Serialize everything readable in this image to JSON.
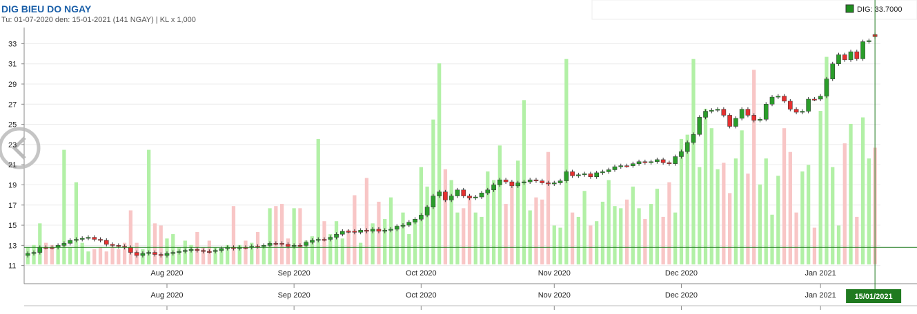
{
  "chart_data": {
    "type": "candlestick",
    "title": "DIG BIEU DO NGAY",
    "subtitle": "Tu: 01-07-2020 den: 15-01-2021 (141 NGAY) | KL x 1,000",
    "legend_text": "DIG: 33.7000",
    "legend_color": "#1f8f1f",
    "up_color": "#2a9d2a",
    "down_color": "#e53030",
    "volume_up_color": "#b2f0a6",
    "volume_down_color": "#f8c6c6",
    "crosshair_color": "#1f7a1f",
    "crosshair": {
      "x": 140,
      "y": 12.8,
      "x_label": "15/01/2021"
    },
    "ylim": [
      9.2,
      34.6
    ],
    "yticks": [
      11,
      13,
      15,
      17,
      19,
      21,
      23,
      25,
      27,
      29,
      31,
      33
    ],
    "xlim": [
      -0.6,
      140.9
    ],
    "xticks": [
      {
        "value": 23,
        "label": "Aug 2020"
      },
      {
        "value": 44,
        "label": "Sep 2020"
      },
      {
        "value": 65,
        "label": "Oct 2020"
      },
      {
        "value": 87,
        "label": "Nov 2020"
      },
      {
        "value": 108,
        "label": "Dec 2020"
      },
      {
        "value": 131,
        "label": "Jan 2021"
      }
    ],
    "volume_lim": [
      0,
      10000
    ],
    "grid": true,
    "open": [
      12.0,
      12.2,
      12.3,
      12.8,
      12.8,
      12.8,
      13.0,
      13.2,
      13.5,
      13.6,
      13.7,
      13.8,
      13.6,
      13.5,
      13.1,
      13.0,
      12.9,
      12.8,
      12.3,
      12.0,
      12.2,
      12.3,
      12.1,
      12.0,
      12.2,
      12.3,
      12.4,
      12.5,
      12.6,
      12.5,
      12.4,
      12.4,
      12.5,
      12.7,
      12.8,
      12.7,
      12.8,
      12.8,
      12.9,
      12.9,
      13.0,
      13.2,
      13.2,
      13.1,
      12.9,
      13.0,
      13.0,
      13.3,
      13.5,
      13.6,
      13.6,
      13.8,
      14.1,
      14.4,
      14.4,
      14.3,
      14.5,
      14.4,
      14.6,
      14.4,
      14.5,
      14.6,
      14.9,
      15.0,
      15.3,
      15.6,
      16.0,
      16.8,
      17.9,
      18.3,
      17.5,
      17.9,
      18.5,
      17.9,
      17.7,
      17.8,
      18.2,
      18.5,
      19.0,
      19.5,
      19.3,
      18.9,
      19.2,
      19.3,
      19.5,
      19.4,
      19.2,
      19.1,
      19.2,
      19.4,
      20.3,
      19.9,
      20.0,
      20.1,
      19.8,
      20.2,
      20.3,
      20.5,
      20.8,
      20.9,
      20.9,
      21.1,
      21.3,
      21.2,
      21.3,
      21.5,
      21.2,
      21.1,
      21.8,
      22.3,
      23.2,
      24.0,
      25.7,
      26.3,
      26.4,
      26.5,
      25.9,
      24.8,
      25.6,
      26.5,
      25.9,
      25.4,
      25.5,
      27.0,
      27.7,
      27.8,
      27.3,
      26.5,
      26.2,
      26.3,
      27.5,
      27.5,
      27.8,
      29.5,
      31.0,
      31.9,
      31.4,
      32.2,
      31.5,
      33.2,
      33.9
    ],
    "high": [
      12.4,
      12.5,
      13.0,
      13.0,
      13.0,
      13.2,
      13.4,
      13.7,
      13.8,
      13.9,
      14.0,
      14.0,
      13.8,
      13.7,
      13.3,
      13.2,
      13.1,
      13.0,
      12.5,
      12.4,
      12.5,
      12.5,
      12.3,
      12.4,
      12.5,
      12.6,
      12.7,
      12.8,
      12.8,
      12.7,
      12.6,
      12.7,
      12.9,
      13.0,
      13.0,
      13.0,
      13.0,
      13.1,
      13.1,
      13.2,
      13.4,
      13.4,
      13.4,
      13.3,
      13.2,
      13.2,
      13.5,
      13.7,
      13.8,
      13.8,
      14.0,
      14.3,
      14.6,
      14.6,
      14.6,
      14.7,
      14.7,
      14.8,
      14.8,
      14.7,
      14.8,
      15.1,
      15.2,
      15.5,
      15.8,
      16.2,
      17.0,
      18.1,
      18.5,
      18.5,
      18.1,
      18.7,
      18.7,
      18.1,
      18.0,
      18.4,
      18.7,
      19.2,
      19.7,
      19.7,
      19.5,
      19.4,
      19.5,
      19.7,
      19.7,
      19.6,
      19.4,
      19.4,
      19.6,
      20.5,
      20.5,
      20.2,
      20.3,
      20.3,
      20.4,
      20.5,
      20.7,
      21.0,
      21.1,
      21.1,
      21.3,
      21.5,
      21.5,
      21.5,
      21.7,
      21.7,
      21.4,
      22.0,
      22.5,
      23.4,
      24.2,
      25.9,
      26.5,
      26.6,
      26.7,
      26.7,
      26.1,
      25.8,
      26.7,
      26.7,
      26.1,
      25.7,
      27.2,
      27.9,
      28.0,
      28.0,
      27.5,
      26.7,
      26.5,
      27.7,
      27.7,
      28.0,
      29.7,
      31.2,
      32.1,
      32.1,
      32.4,
      32.4,
      33.4,
      33.5,
      34.1
    ],
    "low": [
      11.8,
      12.0,
      12.1,
      12.6,
      12.6,
      12.6,
      12.8,
      13.0,
      13.3,
      13.4,
      13.5,
      13.4,
      13.3,
      12.9,
      12.8,
      12.7,
      12.6,
      12.1,
      11.8,
      11.8,
      12.0,
      11.9,
      11.8,
      11.8,
      12.0,
      12.1,
      12.2,
      12.3,
      12.3,
      12.2,
      12.2,
      12.2,
      12.3,
      12.5,
      12.5,
      12.5,
      12.6,
      12.6,
      12.7,
      12.7,
      12.8,
      13.0,
      12.9,
      12.7,
      12.7,
      12.8,
      12.8,
      13.1,
      13.3,
      13.4,
      13.4,
      13.6,
      13.9,
      14.2,
      14.1,
      14.1,
      14.2,
      14.2,
      14.2,
      14.2,
      14.3,
      14.4,
      14.7,
      14.8,
      15.1,
      15.4,
      15.8,
      16.6,
      17.7,
      17.3,
      17.3,
      17.7,
      17.7,
      17.5,
      17.5,
      17.6,
      18.0,
      18.3,
      18.8,
      19.1,
      18.7,
      18.7,
      19.0,
      19.1,
      19.2,
      19.0,
      18.9,
      18.9,
      19.0,
      19.2,
      19.7,
      19.7,
      19.8,
      19.6,
      19.6,
      20.0,
      20.1,
      20.3,
      20.6,
      20.7,
      20.7,
      20.9,
      21.0,
      21.0,
      21.1,
      21.0,
      20.9,
      20.9,
      21.6,
      22.1,
      23.0,
      23.8,
      25.5,
      26.1,
      26.2,
      25.7,
      24.6,
      24.6,
      25.4,
      25.7,
      25.2,
      25.2,
      25.3,
      26.8,
      27.5,
      27.1,
      26.3,
      26.0,
      26.0,
      26.1,
      27.3,
      27.3,
      27.6,
      29.3,
      30.8,
      31.2,
      31.2,
      31.3,
      31.3,
      33.0,
      33.5
    ],
    "close": [
      12.2,
      12.3,
      12.8,
      12.8,
      12.8,
      13.0,
      13.2,
      13.5,
      13.6,
      13.7,
      13.8,
      13.6,
      13.5,
      13.1,
      13.0,
      12.9,
      12.8,
      12.3,
      12.0,
      12.2,
      12.3,
      12.1,
      12.0,
      12.2,
      12.3,
      12.4,
      12.5,
      12.6,
      12.5,
      12.4,
      12.4,
      12.5,
      12.7,
      12.8,
      12.7,
      12.8,
      12.8,
      12.9,
      12.9,
      13.0,
      13.2,
      13.2,
      13.1,
      12.9,
      13.0,
      13.0,
      13.3,
      13.5,
      13.6,
      13.6,
      13.8,
      14.1,
      14.4,
      14.4,
      14.3,
      14.5,
      14.4,
      14.6,
      14.4,
      14.5,
      14.6,
      14.9,
      15.0,
      15.3,
      15.6,
      16.0,
      16.8,
      17.9,
      18.3,
      17.5,
      17.9,
      18.5,
      17.9,
      17.7,
      17.8,
      18.2,
      18.5,
      19.0,
      19.5,
      19.3,
      18.9,
      19.2,
      19.3,
      19.5,
      19.4,
      19.2,
      19.1,
      19.2,
      19.4,
      20.3,
      19.9,
      20.0,
      20.1,
      19.8,
      20.2,
      20.3,
      20.5,
      20.8,
      20.9,
      20.9,
      21.1,
      21.3,
      21.2,
      21.3,
      21.5,
      21.2,
      21.1,
      21.8,
      22.3,
      23.2,
      24.0,
      25.7,
      26.3,
      26.4,
      26.5,
      25.9,
      24.8,
      25.6,
      26.5,
      25.9,
      25.4,
      25.5,
      27.0,
      27.7,
      27.8,
      27.3,
      26.5,
      26.2,
      26.3,
      27.5,
      27.5,
      27.8,
      29.5,
      31.0,
      31.9,
      31.4,
      32.2,
      31.5,
      33.2,
      33.3,
      33.7
    ],
    "volume": [
      800,
      900,
      1900,
      1000,
      900,
      800,
      5300,
      800,
      3800,
      1000,
      600,
      700,
      800,
      600,
      900,
      700,
      1000,
      2500,
      1000,
      700,
      5300,
      1900,
      1800,
      1200,
      1400,
      800,
      1100,
      900,
      1500,
      800,
      1100,
      800,
      700,
      900,
      2700,
      900,
      1100,
      1000,
      1500,
      900,
      2600,
      2700,
      2800,
      1200,
      2600,
      2600,
      1100,
      1300,
      5800,
      2000,
      1400,
      2000,
      1200,
      1600,
      3200,
      1000,
      4000,
      1900,
      2900,
      2100,
      3100,
      1800,
      2400,
      1400,
      2000,
      4500,
      3600,
      6700,
      9300,
      4400,
      3900,
      2400,
      2600,
      3100,
      2400,
      2200,
      4300,
      3900,
      5500,
      2800,
      3600,
      4800,
      7600,
      2500,
      3100,
      3000,
      5200,
      1800,
      1700,
      9500,
      2400,
      2200,
      3400,
      1800,
      2000,
      2900,
      3900,
      2700,
      2600,
      3000,
      3600,
      2600,
      2100,
      2800,
      3500,
      2200,
      3800,
      2400,
      5800,
      6000,
      9500,
      4500,
      7200,
      6300,
      4400,
      4700,
      3300,
      4900,
      6200,
      4200,
      9000,
      3700,
      4900,
      2300,
      4100,
      6300,
      5200,
      2400,
      4300,
      4600,
      1700,
      7100,
      9600,
      4500,
      1800,
      5600,
      6500,
      2200,
      6800,
      4900,
      5400
    ]
  }
}
